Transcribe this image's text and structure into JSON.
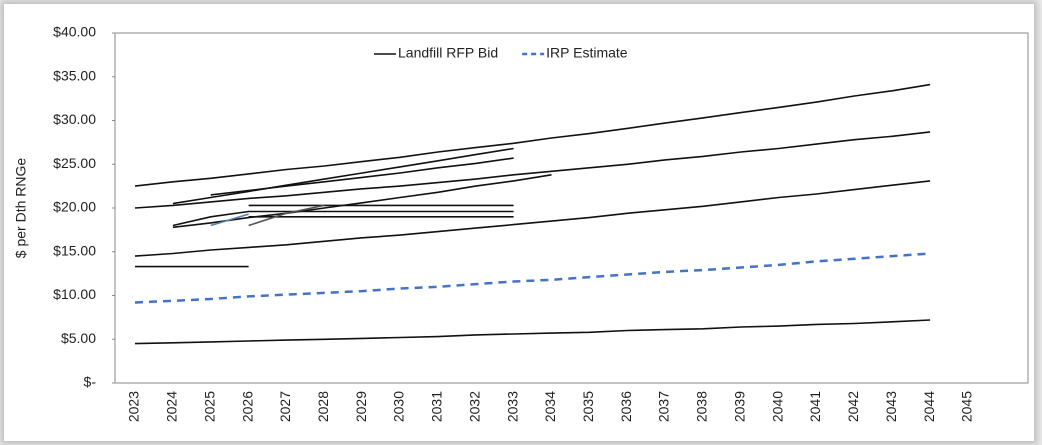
{
  "chart_data": {
    "type": "line",
    "y_label": "$ per Dth RNGe",
    "categories": [
      "2023",
      "2024",
      "2025",
      "2026",
      "2027",
      "2028",
      "2029",
      "2030",
      "2031",
      "2032",
      "2033",
      "2034",
      "2035",
      "2036",
      "2037",
      "2038",
      "2039",
      "2040",
      "2041",
      "2042",
      "2043",
      "2044",
      "2045"
    ],
    "ylim": [
      0,
      40
    ],
    "yticks": [
      {
        "value": 0,
        "label": "$-"
      },
      {
        "value": 5,
        "label": "$5.00"
      },
      {
        "value": 10,
        "label": "$10.00"
      },
      {
        "value": 15,
        "label": "$15.00"
      },
      {
        "value": 20,
        "label": "$20.00"
      },
      {
        "value": 25,
        "label": "$25.00"
      },
      {
        "value": 30,
        "label": "$30.00"
      },
      {
        "value": 35,
        "label": "$35.00"
      },
      {
        "value": 40,
        "label": "$40.00"
      }
    ],
    "legend": "top",
    "series": [
      {
        "name": "Landfill RFP Bid",
        "color": "#111111",
        "values": [
          22.5,
          23.0,
          23.4,
          23.9,
          24.4,
          24.8,
          25.3,
          25.8,
          26.4,
          26.9,
          27.4,
          28.0,
          28.5,
          29.1,
          29.7,
          30.3,
          30.9,
          31.5,
          32.1,
          32.8,
          33.4,
          34.1,
          null
        ]
      },
      {
        "name": "IRP Estimate",
        "color": "#4472c4",
        "dashed": true,
        "values": [
          9.2,
          9.4,
          9.6,
          9.9,
          10.1,
          10.3,
          10.5,
          10.8,
          11.0,
          11.3,
          11.6,
          11.8,
          12.1,
          12.4,
          12.7,
          12.9,
          13.2,
          13.5,
          13.9,
          14.2,
          14.5,
          14.8,
          null
        ]
      },
      {
        "color": "#111111",
        "values": [
          20.0,
          20.3,
          20.7,
          21.1,
          21.4,
          21.8,
          22.2,
          22.5,
          22.9,
          23.3,
          23.8,
          24.2,
          24.6,
          25.0,
          25.5,
          25.9,
          26.4,
          26.8,
          27.3,
          27.8,
          28.2,
          28.7,
          null
        ]
      },
      {
        "color": "#111111",
        "values": [
          14.5,
          14.8,
          15.2,
          15.5,
          15.8,
          16.2,
          16.6,
          16.9,
          17.3,
          17.7,
          18.1,
          18.5,
          18.9,
          19.4,
          19.8,
          20.2,
          20.7,
          21.2,
          21.6,
          22.1,
          22.6,
          23.1,
          null
        ]
      },
      {
        "color": "#111111",
        "values": [
          4.5,
          4.6,
          4.7,
          4.8,
          4.9,
          5.0,
          5.1,
          5.2,
          5.3,
          5.5,
          5.6,
          5.7,
          5.8,
          6.0,
          6.1,
          6.2,
          6.4,
          6.5,
          6.7,
          6.8,
          7.0,
          7.2,
          null
        ]
      },
      {
        "color": "#111111",
        "values": [
          13.3,
          13.3,
          13.3,
          13.3,
          null,
          null,
          null,
          null,
          null,
          null,
          null,
          null,
          null,
          null,
          null,
          null,
          null,
          null,
          null,
          null,
          null,
          null,
          null
        ]
      },
      {
        "color": "#111111",
        "values": [
          null,
          20.5,
          21.2,
          21.9,
          22.6,
          23.3,
          24.0,
          24.7,
          25.4,
          26.1,
          26.8,
          null,
          null,
          null,
          null,
          null,
          null,
          null,
          null,
          null,
          null,
          null,
          null
        ]
      },
      {
        "color": "#111111",
        "values": [
          null,
          null,
          21.5,
          22.0,
          22.5,
          23.0,
          23.5,
          24.0,
          24.6,
          25.1,
          25.7,
          null,
          null,
          null,
          null,
          null,
          null,
          null,
          null,
          null,
          null,
          null,
          null
        ]
      },
      {
        "color": "#111111",
        "values": [
          null,
          17.8,
          18.3,
          18.9,
          19.4,
          20.0,
          20.6,
          21.2,
          21.8,
          22.5,
          23.1,
          23.8,
          null,
          null,
          null,
          null,
          null,
          null,
          null,
          null,
          null,
          null,
          null
        ]
      },
      {
        "color": "#111111",
        "values": [
          null,
          null,
          null,
          20.3,
          20.3,
          20.3,
          20.3,
          20.3,
          20.3,
          20.3,
          20.3,
          null,
          null,
          null,
          null,
          null,
          null,
          null,
          null,
          null,
          null,
          null,
          null
        ]
      },
      {
        "color": "#111111",
        "values": [
          null,
          18.0,
          19.0,
          19.6,
          19.6,
          19.6,
          19.6,
          19.6,
          19.6,
          19.6,
          19.6,
          null,
          null,
          null,
          null,
          null,
          null,
          null,
          null,
          null,
          null,
          null,
          null
        ]
      },
      {
        "color": "#111111",
        "values": [
          null,
          null,
          null,
          19.0,
          19.0,
          19.0,
          19.0,
          19.0,
          19.0,
          19.0,
          19.0,
          null,
          null,
          null,
          null,
          null,
          null,
          null,
          null,
          null,
          null,
          null,
          null
        ]
      },
      {
        "color": "#5a7fa8",
        "values": [
          null,
          null,
          18.0,
          19.3,
          null,
          null,
          null,
          null,
          null,
          null,
          null,
          null,
          null,
          null,
          null,
          null,
          null,
          null,
          null,
          null,
          null,
          null,
          null
        ]
      },
      {
        "color": "#555555",
        "values": [
          null,
          null,
          null,
          18.0,
          19.4,
          20.3,
          null,
          null,
          null,
          null,
          null,
          null,
          null,
          null,
          null,
          null,
          null,
          null,
          null,
          null,
          null,
          null,
          null
        ]
      }
    ]
  }
}
